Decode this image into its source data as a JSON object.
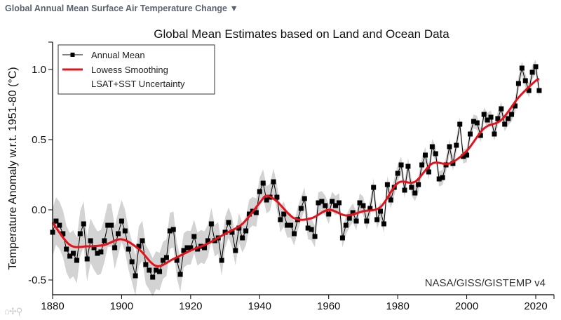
{
  "header": {
    "title": "Global Annual Mean Surface Air Temperature Change",
    "dropdown_icon": "▼"
  },
  "toolbar": {
    "home_icon": "⌂",
    "pan_icon": "✢",
    "zoom_icon": "⚲"
  },
  "chart_data": {
    "type": "line",
    "title": "Global Mean Estimates based on Land and Ocean Data",
    "xlabel": "",
    "ylabel": "Temperature Anomaly w.r.t. 1951-80 (°C)",
    "source": "NASA/GISS/GISTEMP v4",
    "xlim": [
      1880,
      2025
    ],
    "ylim": [
      -0.62,
      1.2
    ],
    "xticks": [
      1880,
      1900,
      1920,
      1940,
      1960,
      1980,
      2000,
      2020
    ],
    "yticks": [
      -0.5,
      0.0,
      0.5,
      1.0
    ],
    "ytick_labels": [
      "-0.5",
      "0.0",
      "0.5",
      "1.0"
    ],
    "legend": {
      "placement": "top-left",
      "entries": [
        "Annual Mean",
        "Lowess Smoothing",
        "LSAT+SST Uncertainty"
      ]
    },
    "colors": {
      "annual": "#000000",
      "lowess": "#e8101a",
      "uncertainty": "#d3d3d3"
    },
    "annual_mean": {
      "start_year": 1880,
      "values": [
        -0.16,
        -0.08,
        -0.11,
        -0.17,
        -0.28,
        -0.33,
        -0.31,
        -0.36,
        -0.17,
        -0.1,
        -0.35,
        -0.22,
        -0.27,
        -0.31,
        -0.3,
        -0.22,
        -0.11,
        -0.11,
        -0.27,
        -0.17,
        -0.08,
        -0.15,
        -0.28,
        -0.37,
        -0.47,
        -0.26,
        -0.22,
        -0.39,
        -0.43,
        -0.48,
        -0.43,
        -0.44,
        -0.36,
        -0.34,
        -0.15,
        -0.14,
        -0.36,
        -0.46,
        -0.29,
        -0.27,
        -0.27,
        -0.19,
        -0.28,
        -0.26,
        -0.27,
        -0.22,
        -0.1,
        -0.22,
        -0.2,
        -0.36,
        -0.16,
        -0.09,
        -0.16,
        -0.29,
        -0.13,
        -0.2,
        -0.15,
        -0.03,
        -0.01,
        -0.02,
        0.13,
        0.19,
        0.07,
        0.09,
        0.2,
        0.09,
        -0.07,
        -0.03,
        -0.11,
        -0.11,
        -0.17,
        -0.07,
        0.01,
        0.08,
        -0.13,
        -0.14,
        -0.19,
        0.05,
        0.06,
        0.03,
        -0.03,
        0.06,
        0.03,
        0.05,
        -0.2,
        -0.11,
        -0.06,
        -0.02,
        -0.08,
        0.05,
        0.03,
        -0.08,
        0.01,
        0.16,
        -0.07,
        -0.01,
        -0.1,
        0.18,
        0.07,
        0.16,
        0.26,
        0.32,
        0.14,
        0.31,
        0.16,
        0.12,
        0.18,
        0.32,
        0.39,
        0.27,
        0.45,
        0.4,
        0.22,
        0.23,
        0.32,
        0.45,
        0.33,
        0.46,
        0.61,
        0.38,
        0.39,
        0.54,
        0.63,
        0.62,
        0.53,
        0.68,
        0.64,
        0.66,
        0.54,
        0.65,
        0.72,
        0.61,
        0.65,
        0.68,
        0.74,
        0.9,
        1.01,
        0.92,
        0.85,
        0.98,
        1.02,
        0.85
      ]
    },
    "lowess": {
      "x": [
        1880,
        1885,
        1890,
        1895,
        1900,
        1905,
        1910,
        1915,
        1920,
        1925,
        1930,
        1935,
        1940,
        1942,
        1945,
        1950,
        1955,
        1960,
        1965,
        1970,
        1975,
        1980,
        1985,
        1990,
        1995,
        2000,
        2005,
        2010,
        2015,
        2020,
        2021
      ],
      "y": [
        -0.09,
        -0.25,
        -0.26,
        -0.25,
        -0.21,
        -0.28,
        -0.4,
        -0.35,
        -0.29,
        -0.24,
        -0.17,
        -0.1,
        0.05,
        0.1,
        0.06,
        -0.06,
        -0.06,
        0.0,
        -0.04,
        -0.01,
        0.02,
        0.19,
        0.2,
        0.33,
        0.33,
        0.42,
        0.58,
        0.64,
        0.8,
        0.92,
        0.93
      ]
    },
    "uncertainty_halfwidth": {
      "x": [
        1880,
        1900,
        1920,
        1940,
        1960,
        1980,
        2000,
        2021
      ],
      "y": [
        0.17,
        0.15,
        0.12,
        0.1,
        0.07,
        0.06,
        0.05,
        0.05
      ]
    }
  }
}
